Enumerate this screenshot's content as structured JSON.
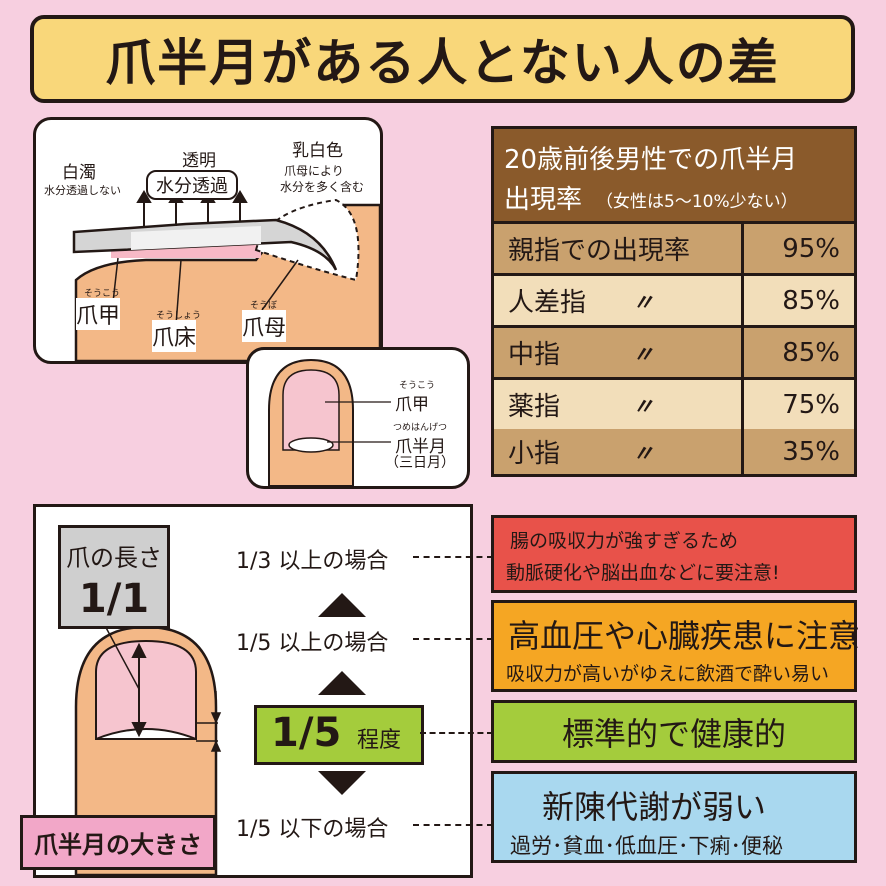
{
  "title": "爪半月がある人とない人の差",
  "nail_diagram": {
    "hakudaku": "白濁",
    "hakudaku_sub": "水分透過しない",
    "toumei": "透明",
    "water_label": "水分透過",
    "nyuhaku": "乳白色",
    "nyuhaku_sub1": "爪母により",
    "nyuhaku_sub2": "水分を多く含む",
    "soukou_ruby": "そうこう",
    "soukou": "爪甲",
    "soushou_ruby": "そうしょう",
    "soushou": "爪床",
    "soubo_ruby": "そうぼ",
    "soubo": "爪母"
  },
  "nail_top": {
    "soukou_ruby": "そうこう",
    "soukou": "爪甲",
    "lunula_ruby": "つめはんげつ",
    "lunula": "爪半月",
    "lunula_sub": "（三日月）"
  },
  "table": {
    "header_line1": "20歳前後男性での爪半月",
    "header_line2": "出現率",
    "header_note": "（女性は5～10%少ない）",
    "rows": [
      {
        "finger": "親指での出現率",
        "ditto": "",
        "rate": "95%"
      },
      {
        "finger": "人差指",
        "ditto": "〃",
        "rate": "85%"
      },
      {
        "finger": "中指",
        "ditto": "〃",
        "rate": "85%"
      },
      {
        "finger": "薬指",
        "ditto": "〃",
        "rate": "75%"
      },
      {
        "finger": "小指",
        "ditto": "〃",
        "rate": "35%"
      }
    ]
  },
  "size_chart": {
    "nail_length_label": "爪の長さ",
    "nail_length_value": "1/1",
    "lunula_size_label": "爪半月の大きさ",
    "levels": {
      "above_third": "1/3 以上の場合",
      "above_fifth": "1/5 以上の場合",
      "standard_value": "1/5",
      "standard_suffix": "程度",
      "below_fifth": "1/5 以下の場合"
    }
  },
  "notes": [
    {
      "line1": "腸の吸収力が強すぎるため",
      "line2": "動脈硬化や脳出血などに要注意!",
      "color": "#e8524a"
    },
    {
      "line1": "高血圧や心臓疾患に注意",
      "line2": "吸収力が高いがゆえに飲酒で酔い易い",
      "color": "#f5a623"
    },
    {
      "line1": "標準的で健康的",
      "line2": "",
      "color": "#a4cc3c"
    },
    {
      "line1": "新陳代謝が弱い",
      "line2": "過労･貧血･低血圧･下痢･便秘",
      "color": "#a9d8ef"
    }
  ]
}
